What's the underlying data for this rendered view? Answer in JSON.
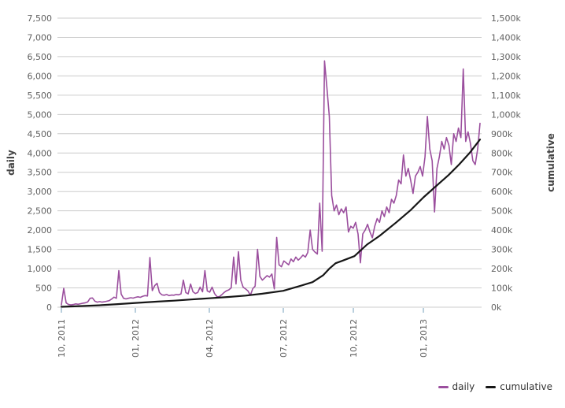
{
  "chart_data": {
    "type": "line",
    "title": "",
    "grid": true,
    "legend_position": "bottom-right",
    "x_axis": {
      "ticks": [
        {
          "label": "10, 2011",
          "pos": 0.0
        },
        {
          "label": "01, 2012",
          "pos": 0.1767
        },
        {
          "label": "04, 2012",
          "pos": 0.3534
        },
        {
          "label": "07, 2012",
          "pos": 0.5301
        },
        {
          "label": "10, 2012",
          "pos": 0.6974
        },
        {
          "label": "01, 2013",
          "pos": 0.8647
        }
      ],
      "tick_color": "#b9cfdd"
    },
    "y_left": {
      "label": "daily",
      "min": 0,
      "max": 7500,
      "step": 500,
      "tick_labels": [
        "0",
        "500",
        "1,000",
        "1,500",
        "2,000",
        "2,500",
        "3,000",
        "3,500",
        "4,000",
        "4,500",
        "5,000",
        "5,500",
        "6,000",
        "6,500",
        "7,000",
        "7,500"
      ]
    },
    "y_right": {
      "label": "cumulative",
      "min": 0,
      "max": 1500000,
      "step": 100000,
      "tick_labels": [
        "0k",
        "100k",
        "200k",
        "300k",
        "400k",
        "500k",
        "600k",
        "700k",
        "800k",
        "900k",
        "1,000k",
        "1,100k",
        "1,200k",
        "1,300k",
        "1,400k",
        "1,500k"
      ]
    },
    "series": [
      {
        "name": "daily",
        "axis": "left",
        "color": "#9b4f9e",
        "note": "values sampled uniformly Oct 2011 - mid Mar 2013, approx 3-day steps",
        "values": [
          60,
          490,
          110,
          70,
          60,
          70,
          85,
          75,
          90,
          105,
          115,
          135,
          230,
          240,
          155,
          130,
          145,
          130,
          140,
          155,
          170,
          210,
          260,
          230,
          950,
          340,
          230,
          215,
          230,
          245,
          235,
          255,
          270,
          255,
          285,
          300,
          290,
          1290,
          430,
          560,
          620,
          380,
          320,
          310,
          330,
          300,
          315,
          310,
          330,
          320,
          345,
          700,
          380,
          345,
          600,
          400,
          355,
          380,
          520,
          400,
          950,
          420,
          390,
          520,
          355,
          275,
          270,
          320,
          380,
          425,
          450,
          500,
          1300,
          600,
          1440,
          700,
          520,
          475,
          420,
          310,
          480,
          545,
          1500,
          800,
          700,
          760,
          820,
          780,
          860,
          475,
          1810,
          1100,
          1050,
          1200,
          1150,
          1100,
          1250,
          1180,
          1300,
          1220,
          1280,
          1350,
          1300,
          1420,
          2000,
          1500,
          1430,
          1380,
          2700,
          1450,
          6390,
          5700,
          4950,
          2900,
          2500,
          2650,
          2400,
          2550,
          2450,
          2600,
          1950,
          2100,
          2050,
          2200,
          1900,
          1150,
          1900,
          2000,
          2150,
          1950,
          1800,
          2100,
          2300,
          2200,
          2500,
          2350,
          2600,
          2450,
          2800,
          2700,
          2900,
          3300,
          3200,
          3950,
          3400,
          3600,
          3300,
          2950,
          3400,
          3500,
          3650,
          3400,
          3900,
          4950,
          4100,
          3800,
          2470,
          3600,
          3900,
          4300,
          4100,
          4400,
          4200,
          3700,
          4500,
          4300,
          4650,
          4400,
          6180,
          4300,
          4550,
          4250,
          3800,
          3700,
          4100,
          4770
        ]
      },
      {
        "name": "cumulative",
        "axis": "right",
        "color": "#161616",
        "points": [
          [
            0.0,
            2000
          ],
          [
            0.05,
            6000
          ],
          [
            0.09,
            10000
          ],
          [
            0.135,
            16000
          ],
          [
            0.177,
            22000
          ],
          [
            0.23,
            29000
          ],
          [
            0.27,
            34000
          ],
          [
            0.31,
            40000
          ],
          [
            0.353,
            46000
          ],
          [
            0.4,
            53000
          ],
          [
            0.44,
            60000
          ],
          [
            0.48,
            70000
          ],
          [
            0.53,
            85000
          ],
          [
            0.57,
            110000
          ],
          [
            0.6,
            130000
          ],
          [
            0.625,
            165000
          ],
          [
            0.64,
            200000
          ],
          [
            0.655,
            228000
          ],
          [
            0.67,
            240000
          ],
          [
            0.7,
            265000
          ],
          [
            0.73,
            325000
          ],
          [
            0.76,
            370000
          ],
          [
            0.8,
            440000
          ],
          [
            0.835,
            505000
          ],
          [
            0.865,
            570000
          ],
          [
            0.9,
            638000
          ],
          [
            0.925,
            686000
          ],
          [
            0.95,
            740000
          ],
          [
            0.975,
            800000
          ],
          [
            1.0,
            870000
          ]
        ]
      }
    ],
    "legend": [
      {
        "label": "daily"
      },
      {
        "label": "cumulative"
      }
    ]
  },
  "colors": {
    "background": "#ffffff",
    "gridline": "#cccccc",
    "tick_text": "#606060",
    "axis_title_text": "#444444",
    "x_tick_mark": "#b9cfdd",
    "daily_line": "#9b4f9e",
    "cumulative_line": "#161616",
    "legend_text": "#333333"
  }
}
